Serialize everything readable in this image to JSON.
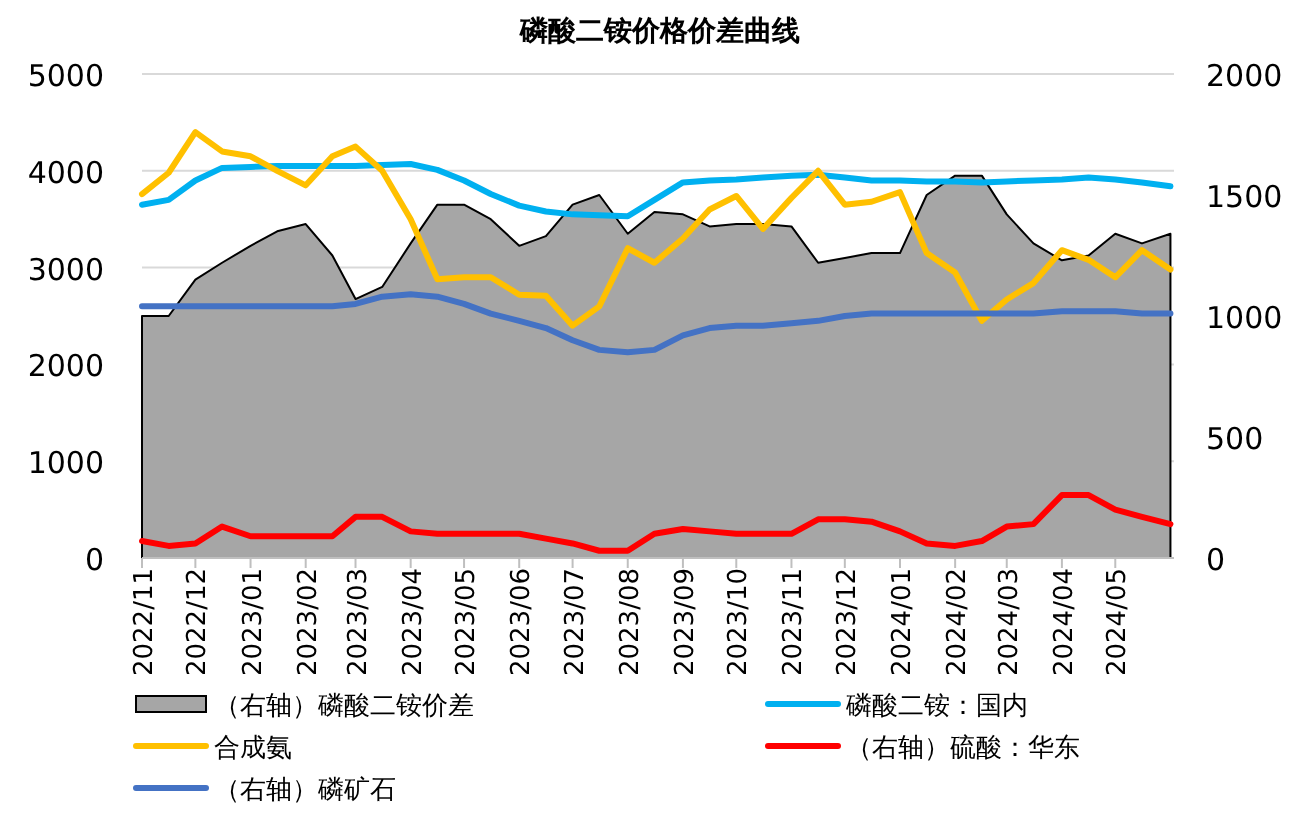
{
  "chart_data": {
    "type": "line",
    "title": "磷酸二铵价格价差曲线",
    "x": [
      "2022-11-01",
      "2022-11-16",
      "2022-12-01",
      "2022-12-16",
      "2023-01-01",
      "2023-01-16",
      "2023-02-01",
      "2023-02-16",
      "2023-03-01",
      "2023-03-16",
      "2023-04-01",
      "2023-04-16",
      "2023-05-01",
      "2023-05-16",
      "2023-06-01",
      "2023-06-16",
      "2023-07-01",
      "2023-07-16",
      "2023-08-01",
      "2023-08-16",
      "2023-09-01",
      "2023-09-16",
      "2023-10-01",
      "2023-10-16",
      "2023-11-01",
      "2023-11-16",
      "2023-12-01",
      "2023-12-16",
      "2024-01-01",
      "2024-01-16",
      "2024-02-01",
      "2024-02-16",
      "2024-03-01",
      "2024-03-16",
      "2024-04-01",
      "2024-04-16",
      "2024-05-01",
      "2024-05-16",
      "2024-06-01"
    ],
    "xlim": [
      "2022-11-01",
      "2024-06-03"
    ],
    "xticks": [
      {
        "value": "2022-11-01",
        "label": "2022/11"
      },
      {
        "value": "2022-12-01",
        "label": "2022/12"
      },
      {
        "value": "2023-01-01",
        "label": "2023/01"
      },
      {
        "value": "2023-02-01",
        "label": "2023/02"
      },
      {
        "value": "2023-03-01",
        "label": "2023/03"
      },
      {
        "value": "2023-04-01",
        "label": "2023/04"
      },
      {
        "value": "2023-05-01",
        "label": "2023/05"
      },
      {
        "value": "2023-06-01",
        "label": "2023/06"
      },
      {
        "value": "2023-07-01",
        "label": "2023/07"
      },
      {
        "value": "2023-08-01",
        "label": "2023/08"
      },
      {
        "value": "2023-09-01",
        "label": "2023/09"
      },
      {
        "value": "2023-10-01",
        "label": "2023/10"
      },
      {
        "value": "2023-11-01",
        "label": "2023/11"
      },
      {
        "value": "2023-12-01",
        "label": "2023/12"
      },
      {
        "value": "2024-01-01",
        "label": "2024/01"
      },
      {
        "value": "2024-02-01",
        "label": "2024/02"
      },
      {
        "value": "2024-03-01",
        "label": "2024/03"
      },
      {
        "value": "2024-04-01",
        "label": "2024/04"
      },
      {
        "value": "2024-05-01",
        "label": "2024/05"
      }
    ],
    "ylim": [
      0,
      5000
    ],
    "yticks": [
      0,
      1000,
      2000,
      3000,
      4000,
      5000
    ],
    "y2lim": [
      0,
      2000
    ],
    "y2ticks": [
      0,
      500,
      1000,
      1500,
      2000
    ],
    "grid": "y",
    "legend": "bottom",
    "series": [
      {
        "name": "（右轴）磷酸二铵价差",
        "type": "area",
        "axis": "y2",
        "color": "#a6a6a6",
        "values": [
          1000,
          1000,
          1150,
          1220,
          1290,
          1350,
          1380,
          1250,
          1070,
          1120,
          1300,
          1460,
          1460,
          1400,
          1290,
          1330,
          1460,
          1500,
          1340,
          1430,
          1420,
          1370,
          1380,
          1380,
          1370,
          1220,
          1240,
          1260,
          1260,
          1500,
          1580,
          1580,
          1420,
          1300,
          1230,
          1250,
          1340,
          1300,
          1340
        ]
      },
      {
        "name": "磷酸二铵：国内",
        "color": "#00b0f0",
        "values": [
          3650,
          3700,
          3900,
          4030,
          4040,
          4050,
          4050,
          4050,
          4050,
          4060,
          4070,
          4010,
          3900,
          3760,
          3640,
          3580,
          3550,
          3540,
          3530,
          3700,
          3880,
          3900,
          3910,
          3930,
          3950,
          3960,
          3930,
          3900,
          3900,
          3890,
          3890,
          3880,
          3890,
          3900,
          3910,
          3930,
          3910,
          3880,
          3840
        ]
      },
      {
        "name": "合成氨",
        "color": "#ffc000",
        "values": [
          3760,
          3980,
          4400,
          4200,
          4150,
          4000,
          3850,
          4150,
          4250,
          4000,
          3500,
          2880,
          2900,
          2900,
          2720,
          2710,
          2400,
          2600,
          3200,
          3050,
          3300,
          3600,
          3740,
          3400,
          3720,
          4000,
          3650,
          3680,
          3780,
          3150,
          2950,
          2450,
          2670,
          2840,
          3180,
          3080,
          2900,
          3180,
          2980
        ]
      },
      {
        "name": "（右轴）硫酸：华东",
        "axis": "y2",
        "color": "#ff0000",
        "values": [
          70,
          50,
          60,
          130,
          90,
          90,
          90,
          90,
          170,
          170,
          110,
          100,
          100,
          100,
          100,
          80,
          60,
          30,
          30,
          100,
          120,
          110,
          100,
          100,
          100,
          160,
          160,
          150,
          110,
          60,
          50,
          70,
          130,
          140,
          260,
          260,
          200,
          170,
          140
        ]
      },
      {
        "name": "（右轴）磷矿石",
        "axis": "y2",
        "color": "#4472c4",
        "values": [
          1040,
          1040,
          1040,
          1040,
          1040,
          1040,
          1040,
          1040,
          1050,
          1080,
          1090,
          1080,
          1050,
          1010,
          980,
          950,
          900,
          860,
          850,
          860,
          920,
          950,
          960,
          960,
          970,
          980,
          1000,
          1010,
          1010,
          1010,
          1010,
          1010,
          1010,
          1010,
          1020,
          1020,
          1020,
          1010,
          1010
        ]
      }
    ]
  }
}
